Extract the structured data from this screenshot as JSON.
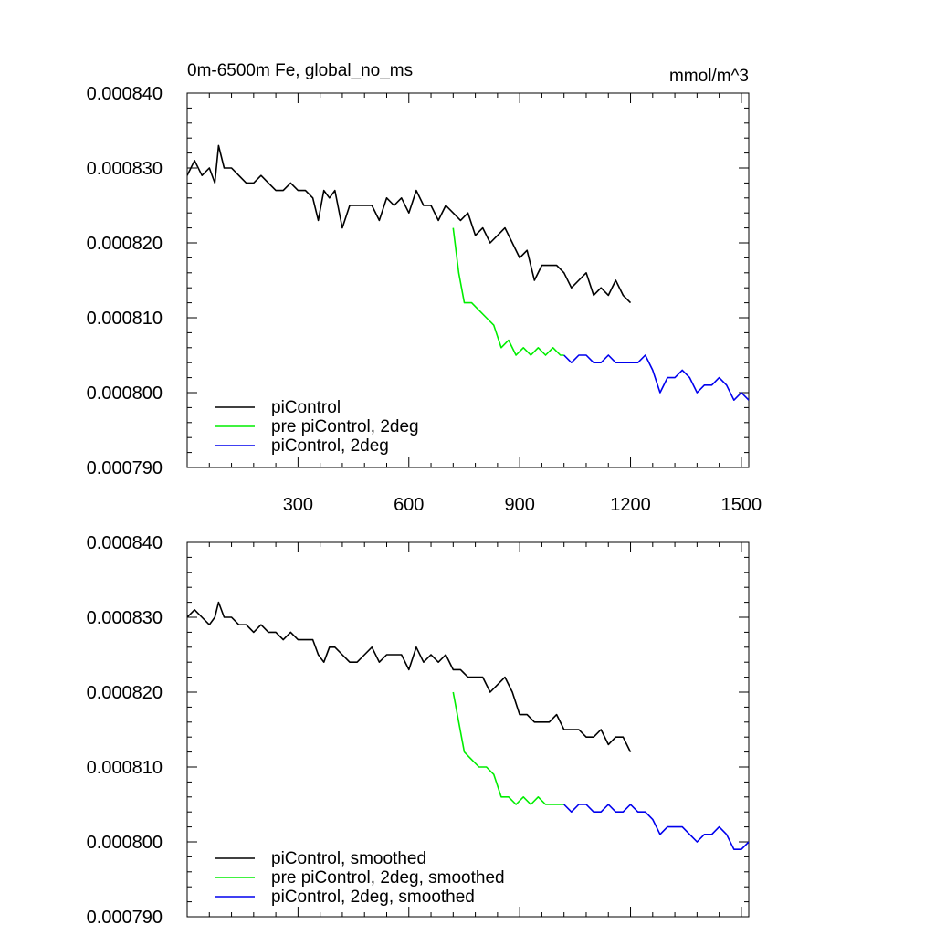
{
  "chart_data": [
    {
      "type": "line",
      "title": "0m-6500m Fe, global_no_ms",
      "units": "mmol/m^3",
      "xlim": [
        0,
        1520
      ],
      "ylim": [
        0.00079,
        0.00084
      ],
      "x_ticks": [
        300,
        600,
        900,
        1200,
        1500
      ],
      "x_tick_labels": [
        "300",
        "600",
        "900",
        "1200",
        "1500"
      ],
      "y_ticks": [
        0.00079,
        0.0008,
        0.00081,
        0.00082,
        0.00083,
        0.00084
      ],
      "y_tick_labels": [
        "0.000790",
        "0.000800",
        "0.000810",
        "0.000820",
        "0.000830",
        "0.000840"
      ],
      "grid": false,
      "legend_position": "bottom-left",
      "series": [
        {
          "name": "piControl",
          "color": "#000000",
          "x": [
            0,
            20,
            40,
            60,
            75,
            85,
            100,
            120,
            140,
            160,
            180,
            200,
            220,
            240,
            260,
            280,
            300,
            320,
            340,
            355,
            370,
            385,
            400,
            420,
            440,
            460,
            480,
            500,
            520,
            540,
            560,
            580,
            600,
            620,
            640,
            660,
            680,
            700,
            720,
            740,
            760,
            780,
            800,
            820,
            840,
            860,
            880,
            900,
            920,
            940,
            960,
            980,
            1000,
            1020,
            1040,
            1060,
            1080,
            1100,
            1120,
            1140,
            1160,
            1180,
            1200
          ],
          "y": [
            0.000829,
            0.000831,
            0.000829,
            0.00083,
            0.000828,
            0.000833,
            0.00083,
            0.00083,
            0.000829,
            0.000828,
            0.000828,
            0.000829,
            0.000828,
            0.000827,
            0.000827,
            0.000828,
            0.000827,
            0.000827,
            0.000826,
            0.000823,
            0.000827,
            0.000826,
            0.000827,
            0.000822,
            0.000825,
            0.000825,
            0.000825,
            0.000825,
            0.000823,
            0.000826,
            0.000825,
            0.000826,
            0.000824,
            0.000827,
            0.000825,
            0.000825,
            0.000823,
            0.000825,
            0.000824,
            0.000823,
            0.000824,
            0.000821,
            0.000822,
            0.00082,
            0.000821,
            0.000822,
            0.00082,
            0.000818,
            0.000819,
            0.000815,
            0.000817,
            0.000817,
            0.000817,
            0.000816,
            0.000814,
            0.000815,
            0.000816,
            0.000813,
            0.000814,
            0.000813,
            0.000815,
            0.000813,
            0.000812
          ]
        },
        {
          "name": "pre piControl, 2deg",
          "color": "#00ee00",
          "x": [
            720,
            735,
            750,
            770,
            790,
            810,
            830,
            850,
            870,
            890,
            910,
            930,
            950,
            970,
            990,
            1010,
            1020
          ],
          "y": [
            0.000822,
            0.000816,
            0.000812,
            0.000812,
            0.000811,
            0.00081,
            0.000809,
            0.000806,
            0.000807,
            0.000805,
            0.000806,
            0.000805,
            0.000806,
            0.000805,
            0.000806,
            0.000805,
            0.000805
          ]
        },
        {
          "name": "piControl, 2deg",
          "color": "#0000ee",
          "x": [
            1020,
            1040,
            1060,
            1080,
            1100,
            1120,
            1140,
            1160,
            1180,
            1200,
            1220,
            1240,
            1260,
            1280,
            1300,
            1320,
            1340,
            1360,
            1380,
            1400,
            1420,
            1440,
            1460,
            1480,
            1500,
            1520
          ],
          "y": [
            0.000805,
            0.000804,
            0.000805,
            0.000805,
            0.000804,
            0.000804,
            0.000805,
            0.000804,
            0.000804,
            0.000804,
            0.000804,
            0.000805,
            0.000803,
            0.0008,
            0.000802,
            0.000802,
            0.000803,
            0.000802,
            0.0008,
            0.000801,
            0.000801,
            0.000802,
            0.000801,
            0.000799,
            0.0008,
            0.000799
          ]
        }
      ]
    },
    {
      "type": "line",
      "title": "",
      "units": "",
      "xlim": [
        0,
        1520
      ],
      "ylim": [
        0.00079,
        0.00084
      ],
      "x_ticks": [
        300,
        600,
        900,
        1200,
        1500
      ],
      "x_tick_labels": [],
      "y_ticks": [
        0.00079,
        0.0008,
        0.00081,
        0.00082,
        0.00083,
        0.00084
      ],
      "y_tick_labels": [
        "0.000790",
        "0.000800",
        "0.000810",
        "0.000820",
        "0.000830",
        "0.000840"
      ],
      "grid": false,
      "legend_position": "bottom-left",
      "series": [
        {
          "name": "piControl, smoothed",
          "color": "#000000",
          "x": [
            0,
            20,
            40,
            60,
            75,
            85,
            100,
            120,
            140,
            160,
            180,
            200,
            220,
            240,
            260,
            280,
            300,
            320,
            340,
            355,
            370,
            385,
            400,
            420,
            440,
            460,
            480,
            500,
            520,
            540,
            560,
            580,
            600,
            620,
            640,
            660,
            680,
            700,
            720,
            740,
            760,
            780,
            800,
            820,
            840,
            860,
            880,
            900,
            920,
            940,
            960,
            980,
            1000,
            1020,
            1040,
            1060,
            1080,
            1100,
            1120,
            1140,
            1160,
            1180,
            1200
          ],
          "y": [
            0.00083,
            0.000831,
            0.00083,
            0.000829,
            0.00083,
            0.000832,
            0.00083,
            0.00083,
            0.000829,
            0.000829,
            0.000828,
            0.000829,
            0.000828,
            0.000828,
            0.000827,
            0.000828,
            0.000827,
            0.000827,
            0.000827,
            0.000825,
            0.000824,
            0.000826,
            0.000826,
            0.000825,
            0.000824,
            0.000824,
            0.000825,
            0.000826,
            0.000824,
            0.000825,
            0.000825,
            0.000825,
            0.000823,
            0.000826,
            0.000824,
            0.000825,
            0.000824,
            0.000825,
            0.000823,
            0.000823,
            0.000822,
            0.000822,
            0.000822,
            0.00082,
            0.000821,
            0.000822,
            0.00082,
            0.000817,
            0.000817,
            0.000816,
            0.000816,
            0.000816,
            0.000817,
            0.000815,
            0.000815,
            0.000815,
            0.000814,
            0.000814,
            0.000815,
            0.000813,
            0.000814,
            0.000814,
            0.000812
          ]
        },
        {
          "name": "pre piControl, 2deg, smoothed",
          "color": "#00ee00",
          "x": [
            720,
            735,
            750,
            770,
            790,
            810,
            830,
            850,
            870,
            890,
            910,
            930,
            950,
            970,
            990,
            1010,
            1020
          ],
          "y": [
            0.00082,
            0.000816,
            0.000812,
            0.000811,
            0.00081,
            0.00081,
            0.000809,
            0.000806,
            0.000806,
            0.000805,
            0.000806,
            0.000805,
            0.000806,
            0.000805,
            0.000805,
            0.000805,
            0.000805
          ]
        },
        {
          "name": "piControl, 2deg, smoothed",
          "color": "#0000ee",
          "x": [
            1020,
            1040,
            1060,
            1080,
            1100,
            1120,
            1140,
            1160,
            1180,
            1200,
            1220,
            1240,
            1260,
            1280,
            1300,
            1320,
            1340,
            1360,
            1380,
            1400,
            1420,
            1440,
            1460,
            1480,
            1500,
            1520
          ],
          "y": [
            0.000805,
            0.000804,
            0.000805,
            0.000805,
            0.000804,
            0.000804,
            0.000805,
            0.000804,
            0.000804,
            0.000805,
            0.000804,
            0.000804,
            0.000803,
            0.000801,
            0.000802,
            0.000802,
            0.000802,
            0.000801,
            0.0008,
            0.000801,
            0.000801,
            0.000802,
            0.000801,
            0.000799,
            0.000799,
            0.0008
          ]
        }
      ]
    }
  ]
}
